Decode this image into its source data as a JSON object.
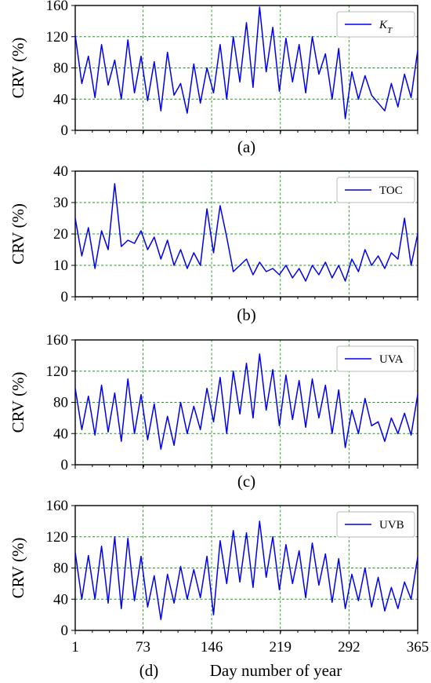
{
  "chart_data": [
    {
      "type": "line",
      "panel": "(a)",
      "ylabel": "CRV (%)",
      "xlabel": "",
      "ylim": [
        0,
        160
      ],
      "yticks": [
        "0",
        "40",
        "80",
        "120",
        "160"
      ],
      "xlim": [
        1,
        365
      ],
      "legend": "top-right",
      "grid": true,
      "series": [
        {
          "name": "K_T",
          "x": [
            1,
            8,
            15,
            22,
            29,
            36,
            43,
            50,
            57,
            64,
            71,
            78,
            85,
            92,
            99,
            106,
            113,
            120,
            127,
            134,
            141,
            148,
            155,
            162,
            169,
            176,
            183,
            190,
            197,
            204,
            211,
            218,
            225,
            232,
            239,
            246,
            253,
            260,
            267,
            274,
            281,
            288,
            295,
            302,
            309,
            316,
            323,
            330,
            337,
            344,
            351,
            358,
            365
          ],
          "values": [
            122,
            60,
            95,
            42,
            110,
            58,
            90,
            40,
            116,
            48,
            95,
            38,
            88,
            25,
            100,
            45,
            60,
            22,
            85,
            35,
            80,
            48,
            110,
            40,
            120,
            62,
            138,
            55,
            158,
            75,
            132,
            50,
            118,
            62,
            110,
            48,
            120,
            72,
            98,
            40,
            105,
            15,
            75,
            40,
            70,
            45,
            35,
            25,
            60,
            30,
            72,
            42,
            102
          ]
        }
      ]
    },
    {
      "type": "line",
      "panel": "(b)",
      "ylabel": "CRV (%)",
      "xlabel": "",
      "ylim": [
        0,
        40
      ],
      "yticks": [
        "0",
        "10",
        "20",
        "30",
        "40"
      ],
      "xlim": [
        1,
        365
      ],
      "legend": "top-right",
      "grid": true,
      "series": [
        {
          "name": "TOC",
          "x": [
            1,
            8,
            15,
            22,
            29,
            36,
            43,
            50,
            57,
            64,
            71,
            78,
            85,
            92,
            99,
            106,
            113,
            120,
            127,
            134,
            141,
            148,
            155,
            162,
            169,
            176,
            183,
            190,
            197,
            204,
            211,
            218,
            225,
            232,
            239,
            246,
            253,
            260,
            267,
            274,
            281,
            288,
            295,
            302,
            309,
            316,
            323,
            330,
            337,
            344,
            351,
            358,
            365
          ],
          "values": [
            25,
            13,
            22,
            9,
            21,
            15,
            36,
            16,
            18,
            17,
            21,
            15,
            19,
            12,
            18,
            10,
            15,
            9,
            14,
            10,
            28,
            14,
            29,
            19,
            8,
            10,
            12,
            7,
            11,
            8,
            9,
            7,
            10,
            6,
            9,
            5,
            10,
            7,
            11,
            6,
            10,
            5,
            12,
            8,
            15,
            10,
            13,
            9,
            14,
            12,
            25,
            10,
            20
          ]
        }
      ]
    },
    {
      "type": "line",
      "panel": "(c)",
      "ylabel": "CRV (%)",
      "xlabel": "",
      "ylim": [
        0,
        160
      ],
      "yticks": [
        "0",
        "40",
        "80",
        "120",
        "160"
      ],
      "xlim": [
        1,
        365
      ],
      "legend": "top-right",
      "grid": true,
      "series": [
        {
          "name": "UVA",
          "x": [
            1,
            8,
            15,
            22,
            29,
            36,
            43,
            50,
            57,
            64,
            71,
            78,
            85,
            92,
            99,
            106,
            113,
            120,
            127,
            134,
            141,
            148,
            155,
            162,
            169,
            176,
            183,
            190,
            197,
            204,
            211,
            218,
            225,
            232,
            239,
            246,
            253,
            260,
            267,
            274,
            281,
            288,
            295,
            302,
            309,
            316,
            323,
            330,
            337,
            344,
            351,
            358,
            365
          ],
          "values": [
            98,
            45,
            88,
            38,
            102,
            42,
            92,
            30,
            110,
            40,
            90,
            32,
            78,
            20,
            62,
            25,
            80,
            40,
            75,
            45,
            98,
            55,
            112,
            40,
            120,
            65,
            130,
            60,
            142,
            70,
            122,
            50,
            115,
            58,
            108,
            48,
            110,
            60,
            102,
            40,
            96,
            22,
            70,
            40,
            85,
            50,
            55,
            30,
            60,
            40,
            66,
            38,
            90
          ]
        }
      ]
    },
    {
      "type": "line",
      "panel": "(d)",
      "ylabel": "CRV (%)",
      "xlabel": "Day number of year",
      "ylim": [
        0,
        160
      ],
      "yticks": [
        "0",
        "40",
        "80",
        "120",
        "160"
      ],
      "xticks": [
        "1",
        "73",
        "146",
        "219",
        "292",
        "365"
      ],
      "xlim": [
        1,
        365
      ],
      "legend": "top-right",
      "grid": true,
      "series": [
        {
          "name": "UVB",
          "x": [
            1,
            8,
            15,
            22,
            29,
            36,
            43,
            50,
            57,
            64,
            71,
            78,
            85,
            92,
            99,
            106,
            113,
            120,
            127,
            134,
            141,
            148,
            155,
            162,
            169,
            176,
            183,
            190,
            197,
            204,
            211,
            218,
            225,
            232,
            239,
            246,
            253,
            260,
            267,
            274,
            281,
            288,
            295,
            302,
            309,
            316,
            323,
            330,
            337,
            344,
            351,
            358,
            365
          ],
          "values": [
            100,
            40,
            96,
            40,
            108,
            35,
            120,
            28,
            118,
            38,
            95,
            30,
            70,
            14,
            72,
            35,
            82,
            40,
            78,
            42,
            95,
            20,
            115,
            60,
            128,
            62,
            125,
            55,
            140,
            68,
            120,
            52,
            110,
            60,
            102,
            42,
            112,
            58,
            98,
            36,
            92,
            28,
            72,
            38,
            80,
            30,
            68,
            25,
            55,
            28,
            62,
            40,
            94
          ]
        }
      ]
    }
  ]
}
